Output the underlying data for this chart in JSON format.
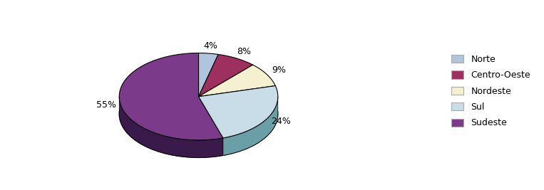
{
  "labels": [
    "Norte",
    "Centro-Oeste",
    "Nordeste",
    "Sul",
    "Sudeste"
  ],
  "values": [
    4,
    8,
    9,
    24,
    55
  ],
  "colors": [
    "#b0c4de",
    "#9e3060",
    "#f5f0d0",
    "#c8dde8",
    "#7b3a8a"
  ],
  "side_colors": [
    "#8090aa",
    "#6e2040",
    "#c0c080",
    "#6a9fa8",
    "#3a1a4a"
  ],
  "shadow_color": "#1a0a1a",
  "background_color": "#ffffff",
  "startangle": 90,
  "pct_labels": [
    "4%",
    "8%",
    "9%",
    "24%",
    "55%"
  ],
  "figsize": [
    7.63,
    2.67
  ],
  "dpi": 100
}
